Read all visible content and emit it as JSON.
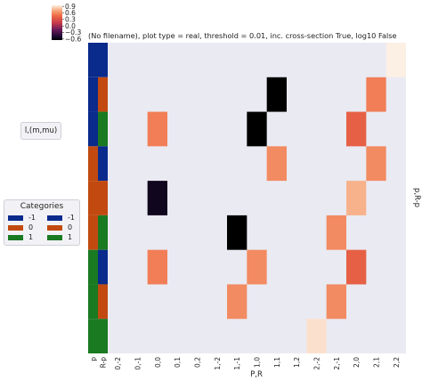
{
  "chart_data": {
    "type": "heatmap",
    "title": "(No filename), plot type = real, threshold = 0.01, inc. cross-section True, log10 False",
    "xlabel": "P,R",
    "ylabel": "p,R-p",
    "x_tick_labels": [
      "0,-2",
      "0,-1",
      "0,0",
      "0,1",
      "0,2",
      "1,-2",
      "1,-1",
      "1,0",
      "1,1",
      "1,2",
      "2,-2",
      "2,-1",
      "2,0",
      "2,1",
      "2,2"
    ],
    "row_count": 9,
    "colorbar": {
      "ticks": [
        "0.9",
        "0.6",
        "0.3",
        "0.0",
        "−0.3",
        "−0.6"
      ],
      "vmin": -0.65,
      "vmax": 0.95
    },
    "cells": [
      {
        "row": 0,
        "col": 14,
        "value": 0.95
      },
      {
        "row": 1,
        "col": 8,
        "value": -0.65
      },
      {
        "row": 1,
        "col": 13,
        "value": 0.55
      },
      {
        "row": 2,
        "col": 2,
        "value": 0.55
      },
      {
        "row": 2,
        "col": 7,
        "value": -0.65
      },
      {
        "row": 2,
        "col": 12,
        "value": 0.4
      },
      {
        "row": 3,
        "col": 8,
        "value": 0.6
      },
      {
        "row": 3,
        "col": 13,
        "value": 0.6
      },
      {
        "row": 4,
        "col": 2,
        "value": -0.55
      },
      {
        "row": 4,
        "col": 12,
        "value": 0.75
      },
      {
        "row": 5,
        "col": 6,
        "value": -0.65
      },
      {
        "row": 5,
        "col": 11,
        "value": 0.6
      },
      {
        "row": 6,
        "col": 2,
        "value": 0.55
      },
      {
        "row": 6,
        "col": 7,
        "value": 0.6
      },
      {
        "row": 6,
        "col": 12,
        "value": 0.4
      },
      {
        "row": 7,
        "col": 6,
        "value": 0.6
      },
      {
        "row": 7,
        "col": 11,
        "value": 0.6
      },
      {
        "row": 8,
        "col": 10,
        "value": 0.9
      }
    ],
    "row_categories_l": [
      "-1",
      "-1",
      "-1",
      "0",
      "0",
      "0",
      "1",
      "1",
      "1"
    ],
    "row_categories_p": [
      "-1",
      "0",
      "1",
      "-1",
      "0",
      "1",
      "-1",
      "0",
      "1"
    ],
    "category_colors": {
      "-1": "#0a2a8c",
      "0": "#c24a10",
      "1": "#1a7a22"
    },
    "row_axis_labels": [
      "p",
      "R-p"
    ],
    "index_label": "l,(m,mu)",
    "legend": {
      "title": "Categories",
      "items": [
        {
          "label": "-1",
          "color": "#0a2a8c"
        },
        {
          "label": "-1",
          "color": "#0a2a8c"
        },
        {
          "label": "0",
          "color": "#c24a10"
        },
        {
          "label": "0",
          "color": "#c24a10"
        },
        {
          "label": "1",
          "color": "#1a7a22"
        },
        {
          "label": "1",
          "color": "#1a7a22"
        }
      ]
    }
  }
}
